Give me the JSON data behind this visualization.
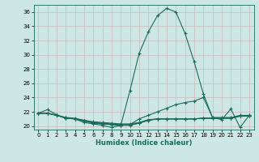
{
  "xlabel": "Humidex (Indice chaleur)",
  "xlim": [
    -0.5,
    23.5
  ],
  "ylim": [
    19.5,
    37.0
  ],
  "xticks": [
    0,
    1,
    2,
    3,
    4,
    5,
    6,
    7,
    8,
    9,
    10,
    11,
    12,
    13,
    14,
    15,
    16,
    17,
    18,
    19,
    20,
    21,
    22,
    23
  ],
  "yticks": [
    20,
    22,
    24,
    26,
    28,
    30,
    32,
    34,
    36
  ],
  "bg_color": "#cde8e4",
  "line_color": "#1a6b5a",
  "grid_color": "#c8b8b8",
  "lines": [
    [
      21.8,
      22.3,
      21.6,
      21.1,
      21.0,
      20.5,
      20.3,
      20.1,
      19.8,
      20.1,
      25.0,
      30.2,
      33.2,
      35.5,
      36.5,
      36.0,
      33.0,
      29.0,
      24.5,
      21.2,
      20.9,
      22.4,
      19.8,
      21.5
    ],
    [
      21.8,
      21.8,
      21.5,
      21.1,
      21.0,
      20.8,
      20.5,
      20.3,
      20.2,
      20.1,
      20.2,
      21.0,
      21.5,
      22.0,
      22.5,
      23.0,
      23.3,
      23.5,
      24.0,
      21.2,
      21.2,
      21.2,
      21.5,
      21.5
    ],
    [
      21.8,
      21.8,
      21.5,
      21.1,
      21.0,
      20.7,
      20.4,
      20.3,
      20.2,
      20.1,
      20.1,
      20.4,
      20.8,
      21.0,
      21.0,
      21.0,
      21.0,
      21.0,
      21.1,
      21.1,
      21.1,
      21.1,
      21.4,
      21.4
    ],
    [
      21.8,
      21.8,
      21.5,
      21.2,
      21.0,
      20.7,
      20.5,
      20.4,
      20.3,
      20.2,
      20.2,
      20.4,
      20.8,
      21.0,
      21.0,
      21.0,
      21.0,
      21.0,
      21.1,
      21.1,
      21.1,
      21.1,
      21.4,
      21.4
    ],
    [
      21.8,
      21.8,
      21.5,
      21.2,
      21.1,
      20.8,
      20.6,
      20.5,
      20.4,
      20.3,
      20.3,
      20.5,
      20.9,
      21.0,
      21.0,
      21.0,
      21.0,
      21.0,
      21.1,
      21.1,
      21.1,
      21.1,
      21.4,
      21.4
    ]
  ]
}
